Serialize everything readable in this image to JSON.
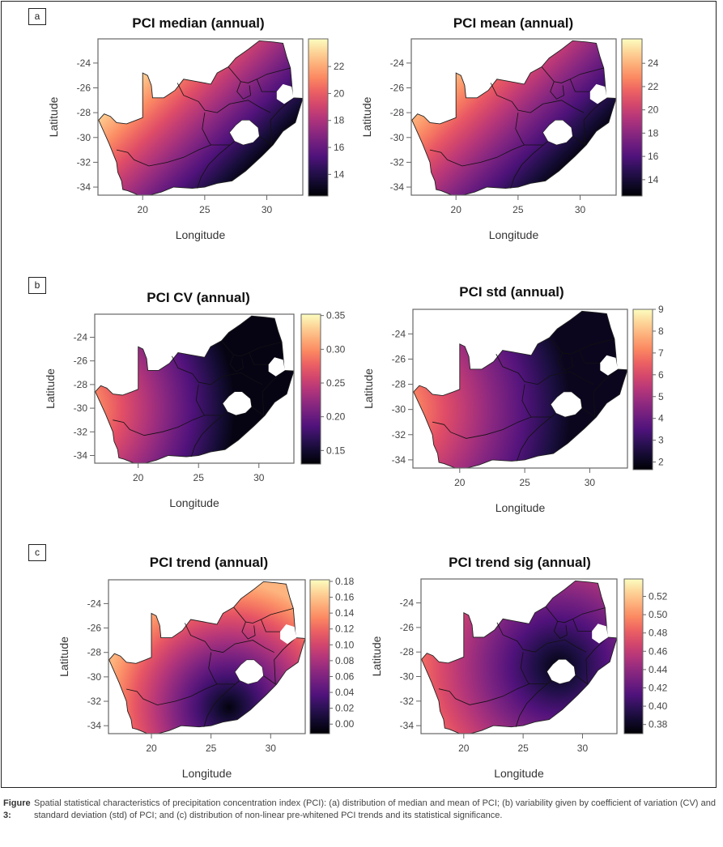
{
  "panel_labels": [
    "a",
    "b",
    "c"
  ],
  "chart_data": [
    {
      "type": "heatmap",
      "panel": "a",
      "title": "PCI median (annual)",
      "xlabel": "Longitude",
      "ylabel": "Latitude",
      "xticks": [
        20,
        25,
        30
      ],
      "yticks": [
        -24,
        -26,
        -28,
        -30,
        -32,
        -34
      ],
      "xlim": [
        16.4,
        32.9
      ],
      "ylim": [
        -34.65,
        -22.05
      ],
      "colorbar": {
        "ticks": [
          14,
          16,
          18,
          20,
          22
        ],
        "range": [
          12.4,
          24.05
        ],
        "palette": "magma"
      }
    },
    {
      "type": "heatmap",
      "panel": "a",
      "title": "PCI mean (annual)",
      "xlabel": "Longitude",
      "ylabel": "Latitude",
      "xticks": [
        20,
        25,
        30
      ],
      "yticks": [
        -24,
        -26,
        -28,
        -30,
        -32,
        -34
      ],
      "xlim": [
        16.4,
        32.9
      ],
      "ylim": [
        -34.65,
        -22.05
      ],
      "colorbar": {
        "ticks": [
          14,
          16,
          18,
          20,
          22,
          24
        ],
        "range": [
          12.6,
          26.1
        ],
        "palette": "magma"
      }
    },
    {
      "type": "heatmap",
      "panel": "b",
      "title": "PCI CV (annual)",
      "xlabel": "Longitude",
      "ylabel": "Latitude",
      "xticks": [
        20,
        25,
        30
      ],
      "yticks": [
        -24,
        -26,
        -28,
        -30,
        -32,
        -34
      ],
      "xlim": [
        16.4,
        32.9
      ],
      "ylim": [
        -34.65,
        -22.05
      ],
      "colorbar": {
        "ticks": [
          "0.15",
          "0.20",
          "0.25",
          "0.30",
          "0.35"
        ],
        "range": [
          0.13,
          0.352
        ],
        "palette": "magma"
      }
    },
    {
      "type": "heatmap",
      "panel": "b",
      "title": "PCI std (annual)",
      "xlabel": "Longitude",
      "ylabel": "Latitude",
      "xticks": [
        20,
        25,
        30
      ],
      "yticks": [
        -24,
        -26,
        -28,
        -30,
        -32,
        -34
      ],
      "xlim": [
        16.4,
        32.9
      ],
      "ylim": [
        -34.65,
        -22.05
      ],
      "colorbar": {
        "ticks": [
          2,
          3,
          4,
          5,
          6,
          7,
          8,
          9
        ],
        "range": [
          1.65,
          9
        ],
        "palette": "magma"
      }
    },
    {
      "type": "heatmap",
      "panel": "c",
      "title": "PCI trend (annual)",
      "xlabel": "Longitude",
      "ylabel": "Latitude",
      "xticks": [
        20,
        25,
        30
      ],
      "yticks": [
        -24,
        -26,
        -28,
        -30,
        -32,
        -34
      ],
      "xlim": [
        16.4,
        32.9
      ],
      "ylim": [
        -34.65,
        -22.05
      ],
      "colorbar": {
        "ticks": [
          "0.00",
          "0.02",
          "0.04",
          "0.06",
          "0.08",
          "0.10",
          "0.12",
          "0.14",
          "0.16",
          "0.18"
        ],
        "range": [
          -0.012,
          0.182
        ],
        "palette": "magma"
      }
    },
    {
      "type": "heatmap",
      "panel": "c",
      "title": "PCI trend sig (annual)",
      "xlabel": "Longitude",
      "ylabel": "Latitude",
      "xticks": [
        20,
        25,
        30
      ],
      "yticks": [
        -24,
        -26,
        -28,
        -30,
        -32,
        -34
      ],
      "xlim": [
        16.4,
        32.9
      ],
      "ylim": [
        -34.65,
        -22.05
      ],
      "colorbar": {
        "ticks": [
          "0.38",
          "0.40",
          "0.42",
          "0.44",
          "0.46",
          "0.48",
          "0.50",
          "0.52"
        ],
        "range": [
          0.37,
          0.539
        ],
        "palette": "magma"
      }
    }
  ],
  "caption": {
    "label": "Figure 3:",
    "text": "Spatial statistical characteristics of precipitation concentration index (PCI): (a) distribution of median and mean of PCI; (b) variability given by coefficient of variation (CV) and standard deviation (std) of PCI; and (c) distribution of non-linear pre-whitened PCI trends and its statistical significance."
  }
}
